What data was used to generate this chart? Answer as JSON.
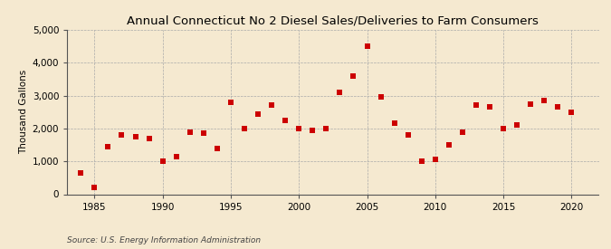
{
  "title": "Annual Connecticut No 2 Diesel Sales/Deliveries to Farm Consumers",
  "ylabel": "Thousand Gallons",
  "source": "Source: U.S. Energy Information Administration",
  "background_color": "#f5e9d0",
  "marker_color": "#cc0000",
  "years": [
    1984,
    1985,
    1986,
    1987,
    1988,
    1989,
    1990,
    1991,
    1992,
    1993,
    1994,
    1995,
    1996,
    1997,
    1998,
    1999,
    2000,
    2001,
    2002,
    2003,
    2004,
    2005,
    2006,
    2007,
    2008,
    2009,
    2010,
    2011,
    2012,
    2013,
    2014,
    2015,
    2016,
    2017,
    2018,
    2019,
    2020
  ],
  "values": [
    650,
    200,
    1450,
    1800,
    1750,
    1700,
    1000,
    1150,
    1900,
    1850,
    1400,
    2800,
    2000,
    2450,
    2700,
    2250,
    2000,
    1950,
    2000,
    3100,
    3600,
    4500,
    2950,
    2150,
    1800,
    1000,
    1050,
    1500,
    1900,
    2700,
    2650,
    2000,
    2100,
    2750,
    2850,
    2650,
    2500
  ],
  "xlim": [
    1983,
    2022
  ],
  "ylim": [
    0,
    5000
  ],
  "xticks": [
    1985,
    1990,
    1995,
    2000,
    2005,
    2010,
    2015,
    2020
  ],
  "yticks": [
    0,
    1000,
    2000,
    3000,
    4000,
    5000
  ],
  "ytick_labels": [
    "0",
    "1,000",
    "2,000",
    "3,000",
    "4,000",
    "5,000"
  ],
  "title_fontsize": 9.5,
  "label_fontsize": 7.5,
  "source_fontsize": 6.5,
  "marker_size": 18
}
